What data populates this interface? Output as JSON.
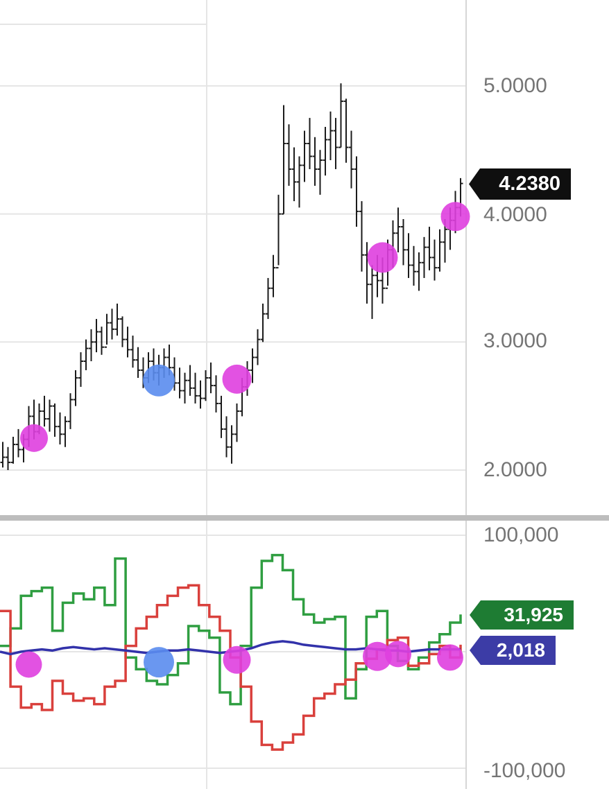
{
  "colors": {
    "background": "#ffffff",
    "grid": "#e5e5e5",
    "grid_strong": "#d6d6d6",
    "separator": "#bdbdbd",
    "axis_text": "#757575",
    "bar": "#1b1b1b",
    "price_badge_bg": "#0f0f0f",
    "positive_badge_bg": "#1e7c33",
    "net_badge_bg": "#3c3ca6",
    "badge_text": "#ffffff",
    "magenta_marker": "#df3fdf",
    "blue_marker": "#5a8cee",
    "positive_line": "#2f9e41",
    "negative_line": "#d9403c",
    "net_line": "#3232aa"
  },
  "chart_data": [
    {
      "type": "ohlc-bar",
      "name": "price-pane",
      "title": "",
      "xlabel": "",
      "ylabel": "",
      "grid": true,
      "legend": false,
      "ylim": [
        1.64,
        5.67
      ],
      "yticks": [
        5.0,
        4.0,
        3.0,
        2.0
      ],
      "ytick_labels": [
        "5.0000",
        "4.0000",
        "3.0000",
        "2.0000"
      ],
      "last_value": 4.238,
      "last_value_label": "4.2380",
      "bars_hlc": [
        [
          2.22,
          2.02,
          2.1
        ],
        [
          2.18,
          2.0,
          2.06
        ],
        [
          2.26,
          2.05,
          2.2
        ],
        [
          2.32,
          2.1,
          2.16
        ],
        [
          2.28,
          2.06,
          2.24
        ],
        [
          2.5,
          2.18,
          2.42
        ],
        [
          2.55,
          2.24,
          2.3
        ],
        [
          2.52,
          2.28,
          2.46
        ],
        [
          2.58,
          2.34,
          2.4
        ],
        [
          2.55,
          2.3,
          2.5
        ],
        [
          2.52,
          2.26,
          2.34
        ],
        [
          2.45,
          2.2,
          2.28
        ],
        [
          2.42,
          2.18,
          2.38
        ],
        [
          2.6,
          2.32,
          2.55
        ],
        [
          2.78,
          2.5,
          2.72
        ],
        [
          2.92,
          2.65,
          2.85
        ],
        [
          3.02,
          2.78,
          2.95
        ],
        [
          3.1,
          2.85,
          3.0
        ],
        [
          3.18,
          2.92,
          3.08
        ],
        [
          3.12,
          2.9,
          2.96
        ],
        [
          3.22,
          2.98,
          3.15
        ],
        [
          3.26,
          3.02,
          3.1
        ],
        [
          3.3,
          3.05,
          3.18
        ],
        [
          3.2,
          2.96,
          3.02
        ],
        [
          3.12,
          2.88,
          2.94
        ],
        [
          3.05,
          2.8,
          2.86
        ],
        [
          2.96,
          2.72,
          2.78
        ],
        [
          2.88,
          2.64,
          2.72
        ],
        [
          2.92,
          2.68,
          2.85
        ],
        [
          2.95,
          2.7,
          2.76
        ],
        [
          2.9,
          2.66,
          2.8
        ],
        [
          2.95,
          2.72,
          2.88
        ],
        [
          2.98,
          2.74,
          2.8
        ],
        [
          2.88,
          2.62,
          2.68
        ],
        [
          2.8,
          2.56,
          2.62
        ],
        [
          2.76,
          2.52,
          2.7
        ],
        [
          2.82,
          2.58,
          2.64
        ],
        [
          2.76,
          2.52,
          2.58
        ],
        [
          2.7,
          2.48,
          2.56
        ],
        [
          2.78,
          2.54,
          2.72
        ],
        [
          2.84,
          2.6,
          2.66
        ],
        [
          2.74,
          2.45,
          2.52
        ],
        [
          2.58,
          2.25,
          2.32
        ],
        [
          2.42,
          2.1,
          2.18
        ],
        [
          2.35,
          2.05,
          2.28
        ],
        [
          2.52,
          2.22,
          2.46
        ],
        [
          2.72,
          2.42,
          2.65
        ],
        [
          2.85,
          2.58,
          2.78
        ],
        [
          2.95,
          2.68,
          2.88
        ],
        [
          3.1,
          2.82,
          3.02
        ],
        [
          3.3,
          3.0,
          3.22
        ],
        [
          3.5,
          3.18,
          3.42
        ],
        [
          3.68,
          3.35,
          3.58
        ],
        [
          4.15,
          3.6,
          4.0
        ],
        [
          4.85,
          4.0,
          4.55
        ],
        [
          4.7,
          4.22,
          4.35
        ],
        [
          4.52,
          4.1,
          4.25
        ],
        [
          4.45,
          4.05,
          4.38
        ],
        [
          4.65,
          4.25,
          4.55
        ],
        [
          4.75,
          4.35,
          4.45
        ],
        [
          4.6,
          4.22,
          4.35
        ],
        [
          4.5,
          4.15,
          4.42
        ],
        [
          4.68,
          4.3,
          4.58
        ],
        [
          4.8,
          4.42,
          4.65
        ],
        [
          4.75,
          4.35,
          4.52
        ],
        [
          5.02,
          4.52,
          4.88
        ],
        [
          4.9,
          4.4,
          4.52
        ],
        [
          4.65,
          4.2,
          4.35
        ],
        [
          4.45,
          3.9,
          4.02
        ],
        [
          4.1,
          3.55,
          3.68
        ],
        [
          3.78,
          3.3,
          3.45
        ],
        [
          3.6,
          3.18,
          3.52
        ],
        [
          3.68,
          3.35,
          3.48
        ],
        [
          3.66,
          3.3,
          3.42
        ],
        [
          3.8,
          3.44,
          3.72
        ],
        [
          3.95,
          3.58,
          3.85
        ],
        [
          4.05,
          3.7,
          3.9
        ],
        [
          3.96,
          3.6,
          3.72
        ],
        [
          3.85,
          3.5,
          3.6
        ],
        [
          3.75,
          3.44,
          3.55
        ],
        [
          3.7,
          3.4,
          3.62
        ],
        [
          3.82,
          3.5,
          3.74
        ],
        [
          3.9,
          3.56,
          3.66
        ],
        [
          3.8,
          3.48,
          3.58
        ],
        [
          3.88,
          3.55,
          3.78
        ],
        [
          3.96,
          3.62,
          3.88
        ],
        [
          4.05,
          3.72,
          3.95
        ],
        [
          4.18,
          3.85,
          4.05
        ],
        [
          4.28,
          3.98,
          4.238
        ]
      ],
      "markers": [
        {
          "bar": 6,
          "value": 2.25,
          "color": "#df3fdf",
          "r": 20,
          "kind": "signal"
        },
        {
          "bar": 30,
          "value": 2.7,
          "color": "#5a8cee",
          "r": 23,
          "kind": "signal"
        },
        {
          "bar": 45,
          "value": 2.71,
          "color": "#df3fdf",
          "r": 21,
          "kind": "signal"
        },
        {
          "bar": 73,
          "value": 3.66,
          "color": "#df3fdf",
          "r": 22,
          "kind": "signal"
        },
        {
          "bar": 87,
          "value": 3.98,
          "color": "#df3fdf",
          "r": 21,
          "kind": "signal"
        }
      ]
    },
    {
      "type": "line",
      "name": "volume-flow-pane",
      "title": "",
      "xlabel": "",
      "ylabel": "",
      "grid": true,
      "legend": false,
      "units": "thousands",
      "ylim": [
        -115,
        112
      ],
      "yticks": [
        100,
        -100
      ],
      "ytick_labels": [
        "100,000",
        "-100,000"
      ],
      "series": [
        {
          "name": "positive-flow",
          "style": "step",
          "color": "#2f9e41",
          "values": [
            5,
            20,
            48,
            52,
            55,
            18,
            42,
            50,
            45,
            55,
            40,
            80,
            -5,
            -15,
            -25,
            -28,
            -20,
            -10,
            22,
            18,
            12,
            -35,
            -45,
            5,
            55,
            78,
            83,
            70,
            45,
            32,
            25,
            28,
            30,
            -40,
            -15,
            30,
            35,
            5,
            -8,
            -15,
            -5,
            8,
            15,
            25,
            32
          ]
        },
        {
          "name": "negative-flow",
          "style": "step",
          "color": "#d9403c",
          "values": [
            35,
            -30,
            -48,
            -45,
            -50,
            -25,
            -36,
            -42,
            -40,
            -45,
            -30,
            -25,
            5,
            20,
            30,
            40,
            48,
            55,
            57,
            40,
            30,
            18,
            -5,
            -30,
            -60,
            -80,
            -84,
            -78,
            -71,
            -55,
            -40,
            -36,
            -28,
            -24,
            -10,
            -6,
            2,
            10,
            12,
            -12,
            -10,
            -2,
            5,
            -5,
            6
          ]
        },
        {
          "name": "net-flow",
          "style": "line",
          "color": "#3232aa",
          "values": [
            0,
            -2,
            0,
            1,
            2,
            1,
            3,
            4,
            3,
            2,
            3,
            2,
            1,
            0,
            -1,
            0,
            1,
            1,
            2,
            1,
            0,
            -1,
            0,
            1,
            3,
            6,
            8,
            9,
            8,
            6,
            5,
            4,
            3,
            2,
            2,
            3,
            2,
            1,
            1,
            0,
            1,
            2,
            2,
            2,
            2
          ]
        }
      ],
      "value_badges": [
        {
          "text": "31,925",
          "value": 31925,
          "color": "#1e7c33",
          "series": "positive-flow"
        },
        {
          "text": "2,018",
          "value": 2018,
          "color": "#3c3ca6",
          "series": "net-flow"
        }
      ],
      "markers": [
        {
          "bar": 5,
          "value": -11,
          "color": "#df3fdf",
          "r": 19,
          "kind": "signal"
        },
        {
          "bar": 30,
          "value": -9,
          "color": "#5a8cee",
          "r": 22,
          "kind": "signal"
        },
        {
          "bar": 45,
          "value": -7,
          "color": "#df3fdf",
          "r": 20,
          "kind": "signal"
        },
        {
          "bar": 72,
          "value": -4,
          "color": "#df3fdf",
          "r": 21,
          "kind": "signal"
        },
        {
          "bar": 76,
          "value": -2,
          "color": "#df3fdf",
          "r": 19,
          "kind": "signal"
        },
        {
          "bar": 86,
          "value": -5,
          "color": "#df3fdf",
          "r": 19,
          "kind": "signal"
        }
      ]
    }
  ]
}
